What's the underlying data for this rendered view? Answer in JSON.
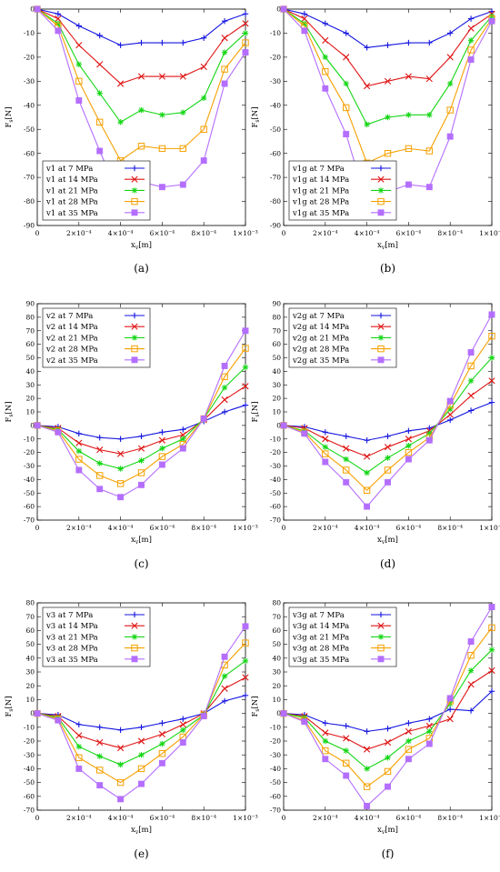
{
  "colors": [
    "#1515e0",
    "#e01515",
    "#15d615",
    "#f5a000",
    "#b46eff"
  ],
  "markers": [
    "plus",
    "cross",
    "star",
    "square",
    "filled-square"
  ],
  "chart_data": [
    {
      "type": "line",
      "panel": "(a)",
      "xlabel": "x_v[m]",
      "ylabel": "F_s[N]",
      "xlim": [
        0,
        0.001
      ],
      "ylim": [
        -90,
        0
      ],
      "yticks": [
        0,
        -10,
        -20,
        -30,
        -40,
        -50,
        -60,
        -70,
        -80,
        -90
      ],
      "xticks": [
        0,
        0.0002,
        0.0004,
        0.0006,
        0.0008,
        0.001
      ],
      "xtick_labels": [
        "0",
        "2×10⁻⁴",
        "4×10⁻⁴",
        "6×10⁻⁴",
        "8×10⁻⁴",
        "1×10⁻³"
      ],
      "legend_position": "bottom-left",
      "x": [
        0,
        0.0001,
        0.0002,
        0.0003,
        0.0004,
        0.0005,
        0.0006,
        0.0007,
        0.0008,
        0.0009,
        0.001
      ],
      "series": [
        {
          "name": "v1 at 7 MPa",
          "values": [
            0,
            -2,
            -7,
            -11,
            -15,
            -14,
            -14,
            -14,
            -12,
            -5,
            -2
          ]
        },
        {
          "name": "v1 at 14 MPa",
          "values": [
            0,
            -4,
            -15,
            -23,
            -31,
            -28,
            -28,
            -28,
            -24,
            -12,
            -6
          ]
        },
        {
          "name": "v1 at 21 MPa",
          "values": [
            0,
            -6,
            -23,
            -35,
            -47,
            -42,
            -44,
            -43,
            -37,
            -18,
            -10
          ]
        },
        {
          "name": "v1 at 28 MPa",
          "values": [
            0,
            -7,
            -30,
            -47,
            -63,
            -57,
            -58,
            -58,
            -50,
            -25,
            -14
          ]
        },
        {
          "name": "v1 at 35 MPa",
          "values": [
            0,
            -9,
            -38,
            -59,
            -79,
            -72,
            -74,
            -73,
            -63,
            -31,
            -18
          ]
        }
      ]
    },
    {
      "type": "line",
      "panel": "(b)",
      "xlabel": "x_v[m]",
      "ylabel": "F_s[N]",
      "xlim": [
        0,
        0.001
      ],
      "ylim": [
        -90,
        0
      ],
      "yticks": [
        0,
        -10,
        -20,
        -30,
        -40,
        -50,
        -60,
        -70,
        -80,
        -90
      ],
      "xticks": [
        0,
        0.0002,
        0.0004,
        0.0006,
        0.0008,
        0.001
      ],
      "xtick_labels": [
        "0",
        "2×10⁻⁴",
        "4×10⁻⁴",
        "6×10⁻⁴",
        "8×10⁻⁴",
        "1×10⁻³"
      ],
      "legend_position": "bottom-left",
      "x": [
        0,
        0.0001,
        0.0002,
        0.0003,
        0.0004,
        0.0005,
        0.0006,
        0.0007,
        0.0008,
        0.0009,
        0.001
      ],
      "series": [
        {
          "name": "v1g at 7 MPa",
          "values": [
            0,
            -2,
            -6,
            -10,
            -16,
            -15,
            -14,
            -14,
            -10,
            -4,
            -1
          ]
        },
        {
          "name": "v1g at 14 MPa",
          "values": [
            0,
            -4,
            -13,
            -20,
            -32,
            -30,
            -28,
            -29,
            -20,
            -8,
            -2
          ]
        },
        {
          "name": "v1g at 21 MPa",
          "values": [
            0,
            -6,
            -20,
            -31,
            -48,
            -45,
            -44,
            -44,
            -31,
            -13,
            -3
          ]
        },
        {
          "name": "v1g at 28 MPa",
          "values": [
            0,
            -7,
            -26,
            -41,
            -64,
            -60,
            -58,
            -59,
            -42,
            -17,
            -4
          ]
        },
        {
          "name": "v1g at 35 MPa",
          "values": [
            0,
            -9,
            -33,
            -52,
            -81,
            -76,
            -73,
            -74,
            -53,
            -21,
            -5
          ]
        }
      ]
    },
    {
      "type": "line",
      "panel": "(c)",
      "xlabel": "x_v[m]",
      "ylabel": "F_s[N]",
      "xlim": [
        0,
        0.001
      ],
      "ylim": [
        -70,
        90
      ],
      "yticks": [
        90,
        80,
        70,
        60,
        50,
        40,
        30,
        20,
        10,
        0,
        -10,
        -20,
        -30,
        -40,
        -50,
        -60,
        -70
      ],
      "xticks": [
        0,
        0.0002,
        0.0004,
        0.0006,
        0.0008,
        0.001
      ],
      "xtick_labels": [
        "0",
        "2×10⁻⁴",
        "4×10⁻⁴",
        "6×10⁻⁴",
        "8×10⁻⁴",
        "1×10⁻³"
      ],
      "legend_position": "top-left",
      "x": [
        0,
        0.0001,
        0.0002,
        0.0003,
        0.0004,
        0.0005,
        0.0006,
        0.0007,
        0.0008,
        0.0009,
        0.001
      ],
      "series": [
        {
          "name": "v2 at 7 MPa",
          "values": [
            0,
            -1,
            -6,
            -9,
            -10,
            -8,
            -5,
            -3,
            3,
            10,
            15
          ]
        },
        {
          "name": "v2 at 14 MPa",
          "values": [
            0,
            -2,
            -13,
            -18,
            -21,
            -17,
            -11,
            -7,
            4,
            19,
            29
          ]
        },
        {
          "name": "v2 at 21 MPa",
          "values": [
            0,
            -3,
            -19,
            -28,
            -32,
            -26,
            -17,
            -10,
            5,
            28,
            43
          ]
        },
        {
          "name": "v2 at 28 MPa",
          "values": [
            0,
            -4,
            -25,
            -37,
            -43,
            -35,
            -23,
            -14,
            5,
            36,
            57
          ]
        },
        {
          "name": "v2 at 35 MPa",
          "values": [
            0,
            -5,
            -33,
            -47,
            -53,
            -44,
            -29,
            -17,
            5,
            44,
            70
          ]
        }
      ]
    },
    {
      "type": "line",
      "panel": "(d)",
      "xlabel": "x_v[m]",
      "ylabel": "F_s[N]",
      "xlim": [
        0,
        0.001
      ],
      "ylim": [
        -70,
        90
      ],
      "yticks": [
        90,
        80,
        70,
        60,
        50,
        40,
        30,
        20,
        10,
        0,
        -10,
        -20,
        -30,
        -40,
        -50,
        -60,
        -70
      ],
      "xticks": [
        0,
        0.0002,
        0.0004,
        0.0006,
        0.0008,
        0.001
      ],
      "xtick_labels": [
        "0",
        "2×10⁻⁴",
        "4×10⁻⁴",
        "6×10⁻⁴",
        "8×10⁻⁴",
        "1×10⁻³"
      ],
      "legend_position": "top-left",
      "x": [
        0,
        0.0001,
        0.0002,
        0.0003,
        0.0004,
        0.0005,
        0.0006,
        0.0007,
        0.0008,
        0.0009,
        0.001
      ],
      "series": [
        {
          "name": "v2g at 7 MPa",
          "values": [
            0,
            -1,
            -5,
            -8,
            -11,
            -8,
            -4,
            -2,
            4,
            11,
            17
          ]
        },
        {
          "name": "v2g at 14 MPa",
          "values": [
            0,
            -2,
            -10,
            -17,
            -23,
            -16,
            -10,
            -4,
            8,
            22,
            33
          ]
        },
        {
          "name": "v2g at 21 MPa",
          "values": [
            0,
            -4,
            -16,
            -25,
            -35,
            -24,
            -15,
            -6,
            12,
            33,
            50
          ]
        },
        {
          "name": "v2g at 28 MPa",
          "values": [
            0,
            -5,
            -21,
            -33,
            -48,
            -33,
            -20,
            -9,
            15,
            44,
            66
          ]
        },
        {
          "name": "v2g at 35 MPa",
          "values": [
            0,
            -6,
            -27,
            -42,
            -60,
            -42,
            -25,
            -11,
            18,
            54,
            82
          ]
        }
      ]
    },
    {
      "type": "line",
      "panel": "(e)",
      "xlabel": "x_v[m]",
      "ylabel": "F_s[N]",
      "xlim": [
        0,
        0.001
      ],
      "ylim": [
        -70,
        80
      ],
      "yticks": [
        80,
        70,
        60,
        50,
        40,
        30,
        20,
        10,
        0,
        -10,
        -20,
        -30,
        -40,
        -50,
        -60,
        -70
      ],
      "xticks": [
        0,
        0.0002,
        0.0004,
        0.0006,
        0.0008,
        0.001
      ],
      "xtick_labels": [
        "0",
        "2×10⁻⁴",
        "4×10⁻⁴",
        "6×10⁻⁴",
        "8×10⁻⁴",
        "1×10⁻³"
      ],
      "legend_position": "top-left",
      "x": [
        0,
        0.0001,
        0.0002,
        0.0003,
        0.0004,
        0.0005,
        0.0006,
        0.0007,
        0.0008,
        0.0009,
        0.001
      ],
      "series": [
        {
          "name": "v3 at 7 MPa",
          "values": [
            0,
            -1,
            -8,
            -10,
            -12,
            -10,
            -7,
            -4,
            0,
            9,
            13
          ]
        },
        {
          "name": "v3 at 14 MPa",
          "values": [
            0,
            -2,
            -16,
            -21,
            -25,
            -20,
            -15,
            -8,
            0,
            18,
            26
          ]
        },
        {
          "name": "v3 at 21 MPa",
          "values": [
            0,
            -3,
            -24,
            -31,
            -37,
            -30,
            -22,
            -12,
            -1,
            27,
            38
          ]
        },
        {
          "name": "v3 at 28 MPa",
          "values": [
            0,
            -4,
            -32,
            -41,
            -50,
            -40,
            -29,
            -17,
            -1,
            35,
            51
          ]
        },
        {
          "name": "v3 at 35 MPa",
          "values": [
            0,
            -5,
            -40,
            -52,
            -62,
            -51,
            -36,
            -21,
            -2,
            41,
            63
          ]
        }
      ]
    },
    {
      "type": "line",
      "panel": "(f)",
      "xlabel": "x_v[m]",
      "ylabel": "F_s[N]",
      "xlim": [
        0,
        0.001
      ],
      "ylim": [
        -70,
        80
      ],
      "yticks": [
        80,
        70,
        60,
        50,
        40,
        30,
        20,
        10,
        0,
        -10,
        -20,
        -30,
        -40,
        -50,
        -60,
        -70
      ],
      "xticks": [
        0,
        0.0002,
        0.0004,
        0.0006,
        0.0008,
        0.001
      ],
      "xtick_labels": [
        "0",
        "2×10⁻⁴",
        "4×10⁻⁴",
        "6×10⁻⁴",
        "8×10⁻⁴",
        "1×10⁻³"
      ],
      "legend_position": "top-left",
      "x": [
        0,
        0.0001,
        0.0002,
        0.0003,
        0.0004,
        0.0005,
        0.0006,
        0.0007,
        0.0008,
        0.0009,
        0.001
      ],
      "series": [
        {
          "name": "v3g at 7 MPa",
          "values": [
            0,
            -1,
            -7,
            -9,
            -13,
            -11,
            -7,
            -4,
            3,
            2,
            16
          ]
        },
        {
          "name": "v3g at 14 MPa",
          "values": [
            0,
            -2,
            -14,
            -18,
            -26,
            -21,
            -13,
            -9,
            -4,
            21,
            31
          ]
        },
        {
          "name": "v3g at 21 MPa",
          "values": [
            0,
            -3,
            -20,
            -27,
            -40,
            -32,
            -20,
            -13,
            7,
            31,
            46
          ]
        },
        {
          "name": "v3g at 28 MPa",
          "values": [
            0,
            -5,
            -27,
            -36,
            -53,
            -42,
            -26,
            -18,
            9,
            42,
            62
          ]
        },
        {
          "name": "v3g at 35 MPa",
          "values": [
            0,
            -6,
            -33,
            -45,
            -67,
            -53,
            -33,
            -22,
            11,
            52,
            77
          ]
        }
      ]
    }
  ]
}
